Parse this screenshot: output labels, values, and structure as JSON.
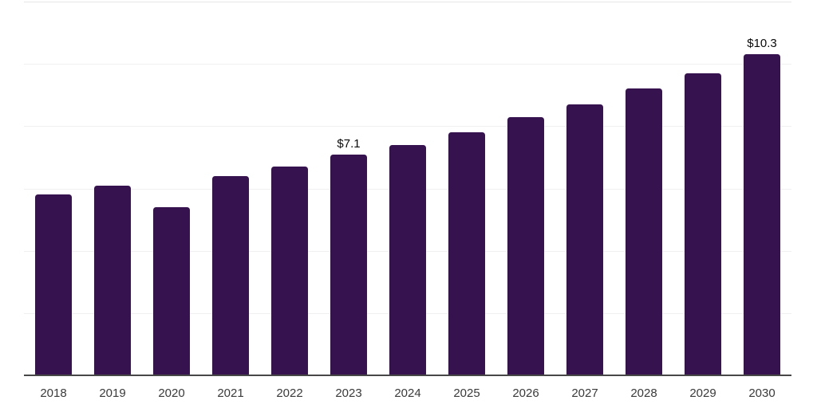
{
  "chart_data": {
    "type": "bar",
    "title": "",
    "xlabel": "",
    "ylabel": "",
    "categories": [
      "2018",
      "2019",
      "2020",
      "2021",
      "2022",
      "2023",
      "2024",
      "2025",
      "2026",
      "2027",
      "2028",
      "2029",
      "2030"
    ],
    "values": [
      5.8,
      6.1,
      5.4,
      6.4,
      6.7,
      7.1,
      7.4,
      7.8,
      8.3,
      8.7,
      9.2,
      9.7,
      10.3
    ],
    "data_labels": [
      "",
      "",
      "",
      "",
      "",
      "$7.1",
      "",
      "",
      "",
      "",
      "",
      "",
      "$10.3"
    ],
    "ylim": [
      0,
      12
    ],
    "gridline_values": [
      2,
      4,
      6,
      8,
      10,
      12
    ],
    "grid_visible": true,
    "legend_position": "none",
    "colors": {
      "bar": "#36124F",
      "grid": "#f0f0f0",
      "grid_top": "#e6e6e6",
      "axis": "#474747",
      "tick_label": "#3a3a3a",
      "data_label": "#0a0a0a",
      "background": "#ffffff"
    }
  }
}
